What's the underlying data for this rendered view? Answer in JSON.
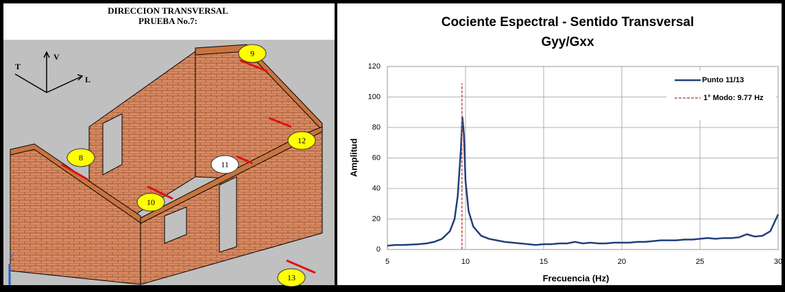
{
  "figure": {
    "title": "DIRECCION TRANSVERSAL",
    "subtitle": "PRUEBA No.7:",
    "axes": {
      "t": "T",
      "v": "V",
      "l": "L",
      "z": "Z"
    },
    "points": [
      "8",
      "9",
      "10",
      "11",
      "12",
      "13"
    ]
  },
  "chart_data": {
    "type": "line",
    "title": "Cociente Espectral - Sentido Transversal",
    "subtitle": "Gyy/Gxx",
    "x_label": "Frecuencia (Hz)",
    "y_label": "Amplitud",
    "xlim": [
      5,
      30
    ],
    "xticks": [
      5,
      10,
      15,
      20,
      25,
      30
    ],
    "ylim": [
      0,
      120
    ],
    "yticks": [
      0,
      20,
      40,
      60,
      80,
      100,
      120
    ],
    "grid": true,
    "legend": "upper right",
    "x": [
      5,
      5.5,
      6,
      6.5,
      7,
      7.5,
      8,
      8.5,
      9,
      9.3,
      9.5,
      9.7,
      9.8,
      9.9,
      10,
      10.2,
      10.5,
      11,
      11.5,
      12,
      12.5,
      13,
      13.5,
      14,
      14.5,
      15,
      15.5,
      16,
      16.5,
      17,
      17.5,
      18,
      18.5,
      19,
      19.5,
      20,
      20.5,
      21,
      21.5,
      22,
      22.5,
      23,
      23.5,
      24,
      24.5,
      25,
      25.5,
      26,
      26.5,
      27,
      27.5,
      28,
      28.5,
      29,
      29.5,
      30
    ],
    "series": [
      {
        "name": "Punto 11/13",
        "color": "#1f3f7a",
        "values": [
          2.5,
          3,
          3,
          3.2,
          3.5,
          4,
          5,
          7,
          12,
          20,
          35,
          65,
          87,
          75,
          45,
          25,
          15,
          9,
          7,
          6,
          5,
          4.5,
          4,
          3.5,
          3,
          3.5,
          3.5,
          4,
          4,
          5,
          4,
          4.5,
          4,
          4,
          4.5,
          4.5,
          4.5,
          5,
          5,
          5.5,
          6,
          6,
          6,
          6.5,
          6.5,
          7,
          7.5,
          7,
          7.5,
          7.5,
          8,
          10,
          8.5,
          9,
          12,
          23
        ]
      }
    ],
    "reference_line": {
      "name": "1° Modo: 9.77 Hz",
      "x": 9.77,
      "y": [
        0,
        109
      ],
      "color": "#c0504d"
    }
  }
}
